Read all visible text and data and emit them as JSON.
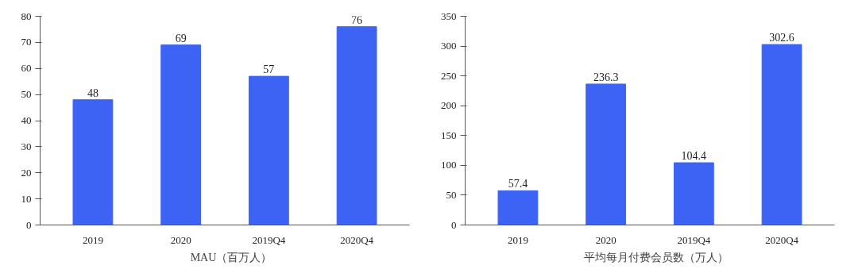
{
  "chart_data": [
    {
      "type": "bar",
      "categories": [
        "2019",
        "2020",
        "2019Q4",
        "2020Q4"
      ],
      "series": [
        {
          "name": "MAU（百万人）",
          "color": "#3d63f5",
          "values": [
            48,
            69,
            57,
            76
          ]
        }
      ],
      "ylim": [
        0,
        80
      ],
      "yticks": [
        0,
        10,
        20,
        30,
        40,
        50,
        60,
        70,
        80
      ],
      "data_labels": true,
      "legend": "bottom"
    },
    {
      "type": "bar",
      "categories": [
        "2019",
        "2020",
        "2019Q4",
        "2020Q4"
      ],
      "series": [
        {
          "name": "平均每月付费会员数（万人）",
          "color": "#3d63f5",
          "values": [
            57.4,
            236.3,
            104.4,
            302.6
          ]
        }
      ],
      "ylim": [
        0,
        350
      ],
      "yticks": [
        0,
        50,
        100,
        150,
        200,
        250,
        300,
        350
      ],
      "data_labels": true,
      "legend": "bottom"
    }
  ]
}
